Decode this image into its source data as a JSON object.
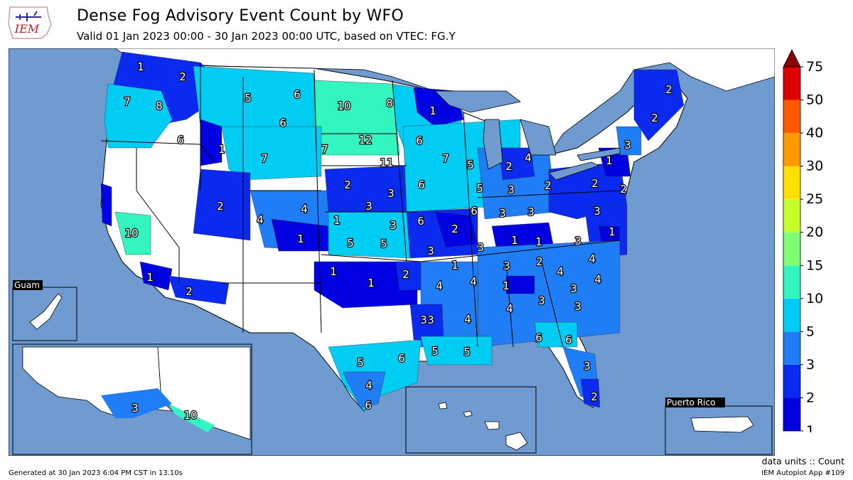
{
  "header": {
    "logo_text": "IEM",
    "title": "Dense Fog Advisory Event Count by WFO",
    "subtitle": "Valid 01 Jan 2023 00:00 - 30 Jan 2023 00:00 UTC, based on VTEC: FG.Y"
  },
  "colors": {
    "ocean": "#6f9bd0",
    "land_none": "#ffffff",
    "canada": "#ffffff",
    "bins": [
      "#0000e0",
      "#0a2bef",
      "#1f7ef5",
      "#00ccf4",
      "#33f5c0",
      "#7fff76",
      "#c7ff2a",
      "#ffe000",
      "#ff9b00",
      "#ff5a00",
      "#e00000",
      "#8b0000"
    ]
  },
  "map": {
    "insets": {
      "guam": "Guam",
      "puerto_rico": "Puerto Rico"
    },
    "wfo_counts": [
      1,
      2,
      7,
      5,
      6,
      8,
      10,
      1,
      2,
      8,
      6,
      6,
      1,
      12,
      7,
      6,
      11,
      7,
      5,
      2,
      4,
      2,
      3,
      7,
      6,
      5,
      1,
      2,
      2,
      3,
      3,
      3,
      2,
      3,
      2,
      3,
      4,
      1,
      6,
      3,
      3,
      5,
      2,
      1,
      4,
      3,
      5,
      6,
      2,
      1,
      3,
      1,
      1,
      3,
      1,
      1,
      2,
      3,
      4,
      4,
      3,
      4,
      2,
      4,
      1,
      1,
      3,
      3,
      4,
      3,
      4,
      3,
      4,
      6,
      6,
      5,
      5,
      5,
      6,
      4,
      6,
      3,
      2,
      10,
      1,
      2,
      3,
      10
    ]
  },
  "colorbar": {
    "tick_labels": [
      "1",
      "2",
      "3",
      "5",
      "10",
      "15",
      "20",
      "25",
      "30",
      "40",
      "50",
      "75"
    ]
  },
  "footer": {
    "units": "data units :: Count",
    "generated": "Generated at 30 Jan 2023 6:04 PM CST in 13.10s",
    "app": "IEM Autoplot App #109"
  }
}
